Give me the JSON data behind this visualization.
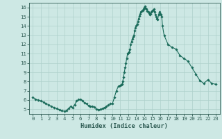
{
  "xlabel": "Humidex (Indice chaleur)",
  "bg_color": "#cde8e4",
  "line_color": "#1a6b5a",
  "marker_color": "#1a6b5a",
  "grid_color": "#aed0cb",
  "tick_label_color": "#2d5a52",
  "xlim": [
    -0.5,
    23.5
  ],
  "ylim": [
    4.5,
    16.5
  ],
  "yticks": [
    5,
    6,
    7,
    8,
    9,
    10,
    11,
    12,
    13,
    14,
    15,
    16
  ],
  "xticks": [
    0,
    1,
    2,
    3,
    4,
    5,
    6,
    7,
    8,
    9,
    10,
    11,
    12,
    13,
    14,
    15,
    16,
    17,
    18,
    19,
    20,
    21,
    22,
    23
  ],
  "x": [
    0,
    0.33,
    0.67,
    1,
    1.33,
    1.67,
    2,
    2.33,
    2.67,
    3,
    3.33,
    3.67,
    4,
    4.25,
    4.5,
    4.75,
    5,
    5.25,
    5.5,
    5.75,
    6,
    6.25,
    6.5,
    6.75,
    7,
    7.25,
    7.5,
    7.75,
    8,
    8.25,
    8.5,
    8.75,
    9,
    9.25,
    9.5,
    9.75,
    10,
    10.25,
    10.5,
    10.75,
    11,
    11.1,
    11.2,
    11.3,
    11.4,
    11.5,
    11.6,
    11.7,
    11.8,
    11.9,
    12,
    12.1,
    12.2,
    12.3,
    12.4,
    12.5,
    12.6,
    12.7,
    12.8,
    12.9,
    13,
    13.1,
    13.2,
    13.3,
    13.4,
    13.5,
    13.6,
    13.7,
    13.8,
    13.9,
    14,
    14.1,
    14.2,
    14.3,
    14.4,
    14.5,
    14.6,
    14.7,
    14.8,
    14.9,
    15,
    15.1,
    15.2,
    15.3,
    15.4,
    15.5,
    15.6,
    15.7,
    15.8,
    15.9,
    16,
    16.1,
    16.2,
    16.3,
    16.5,
    17,
    17.5,
    18,
    18.5,
    19,
    19.5,
    20,
    20.5,
    21,
    21.5,
    22,
    22.5,
    23
  ],
  "y": [
    6.3,
    6.1,
    6.0,
    5.9,
    5.8,
    5.6,
    5.5,
    5.3,
    5.2,
    5.1,
    4.95,
    4.85,
    4.8,
    4.9,
    5.1,
    5.3,
    5.2,
    5.5,
    5.9,
    6.05,
    6.1,
    5.9,
    5.7,
    5.6,
    5.4,
    5.35,
    5.3,
    5.25,
    5.0,
    4.95,
    5.0,
    5.1,
    5.2,
    5.3,
    5.5,
    5.6,
    5.6,
    6.3,
    7.0,
    7.5,
    7.6,
    7.65,
    7.7,
    8.0,
    8.5,
    9.0,
    9.5,
    10.0,
    10.5,
    11.0,
    11.1,
    11.2,
    11.5,
    12.0,
    12.3,
    12.6,
    12.8,
    13.0,
    13.5,
    13.8,
    14.0,
    14.2,
    14.5,
    14.8,
    15.1,
    15.3,
    15.5,
    15.6,
    15.7,
    15.8,
    16.0,
    16.1,
    15.9,
    15.8,
    15.6,
    15.5,
    15.4,
    15.2,
    15.3,
    15.5,
    15.6,
    15.7,
    15.8,
    15.5,
    15.2,
    15.0,
    14.8,
    14.7,
    15.2,
    15.5,
    15.3,
    15.2,
    15.0,
    14.0,
    13.0,
    12.0,
    11.7,
    11.5,
    10.8,
    10.5,
    10.2,
    9.5,
    8.8,
    8.1,
    7.8,
    8.2,
    7.8,
    7.7
  ]
}
